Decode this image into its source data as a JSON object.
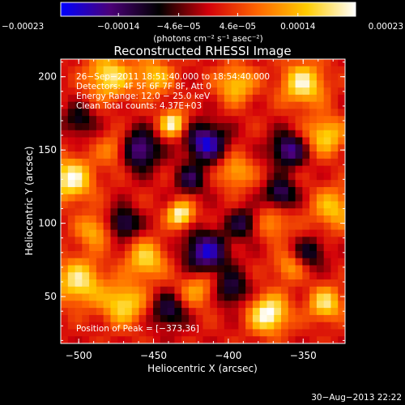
{
  "chart_data": {
    "type": "heatmap",
    "title": "Reconstructed RHESSI Image",
    "xlabel": "Heliocentric X (arcsec)",
    "ylabel": "Heliocentric Y (arcsec)",
    "xlim": [
      -512,
      -322
    ],
    "ylim": [
      18,
      212
    ],
    "xticks": [
      -500,
      -450,
      -400,
      -350
    ],
    "yticks": [
      50,
      100,
      150,
      200
    ],
    "xtick_labels": [
      "−500",
      "−450",
      "−400",
      "−350"
    ],
    "ytick_labels": [
      "50",
      "100",
      "150",
      "200"
    ],
    "colorbar": {
      "min": -0.00023,
      "max": 0.00023,
      "ticks": [
        -0.00023,
        -0.00014,
        -4.6e-05,
        4.6e-05,
        0.00014,
        0.00023
      ],
      "tick_labels": [
        "−0.00023",
        "−0.00014",
        "−4.6e−05",
        "4.6e−05",
        "0.00014",
        "0.00023"
      ],
      "unit_label": "(photons cm⁻² s⁻¹ asec⁻²)",
      "colors": [
        "#0000ff",
        "#4b0078",
        "#000000",
        "#d2000a",
        "#ff6600",
        "#ffcc00",
        "#ffffff"
      ]
    },
    "annotations": [
      "26−Sep−2011 18:51:40.000 to 18:54:40.000",
      "Detectors: 4F 5F 6F 7F 8F, Att 0",
      "Energy Range: 12.0 − 25.0 keV",
      "Clean    Total counts: 4.37E+03"
    ],
    "peak_label": "Position of Peak = [−373,36]",
    "peak": {
      "x": -373,
      "y": 36
    },
    "grid_size": [
      40,
      40
    ],
    "blobs": [
      {
        "x": -373,
        "y": 38,
        "a": 1.0,
        "s": 9
      },
      {
        "x": -432,
        "y": 106,
        "a": 0.95,
        "s": 6
      },
      {
        "x": -437,
        "y": 168,
        "a": 0.9,
        "s": 6
      },
      {
        "x": -505,
        "y": 130,
        "a": 0.9,
        "s": 10
      },
      {
        "x": -500,
        "y": 60,
        "a": 0.8,
        "s": 11
      },
      {
        "x": -470,
        "y": 45,
        "a": 0.75,
        "s": 10
      },
      {
        "x": -455,
        "y": 75,
        "a": 0.7,
        "s": 9
      },
      {
        "x": -420,
        "y": 55,
        "a": 0.5,
        "s": 9
      },
      {
        "x": -480,
        "y": 200,
        "a": 0.8,
        "s": 10
      },
      {
        "x": -450,
        "y": 200,
        "a": 0.6,
        "s": 9
      },
      {
        "x": -395,
        "y": 195,
        "a": 0.65,
        "s": 9
      },
      {
        "x": -350,
        "y": 195,
        "a": 0.85,
        "s": 10
      },
      {
        "x": -335,
        "y": 160,
        "a": 0.7,
        "s": 9
      },
      {
        "x": -330,
        "y": 110,
        "a": 0.6,
        "s": 10
      },
      {
        "x": -335,
        "y": 45,
        "a": 0.75,
        "s": 8
      },
      {
        "x": -395,
        "y": 135,
        "a": 0.55,
        "s": 8
      },
      {
        "x": -370,
        "y": 100,
        "a": 0.45,
        "s": 8
      },
      {
        "x": -475,
        "y": 150,
        "a": 0.5,
        "s": 8
      },
      {
        "x": -490,
        "y": 95,
        "a": 0.55,
        "s": 8
      },
      {
        "x": -360,
        "y": 70,
        "a": 0.45,
        "s": 7
      },
      {
        "x": -460,
        "y": 150,
        "a": -0.9,
        "s": 9
      },
      {
        "x": -470,
        "y": 100,
        "a": -0.7,
        "s": 7
      },
      {
        "x": -415,
        "y": 155,
        "a": -0.95,
        "s": 9
      },
      {
        "x": -415,
        "y": 80,
        "a": -0.9,
        "s": 10
      },
      {
        "x": -398,
        "y": 55,
        "a": -0.6,
        "s": 8
      },
      {
        "x": -360,
        "y": 150,
        "a": -0.8,
        "s": 8
      },
      {
        "x": -365,
        "y": 120,
        "a": -0.7,
        "s": 7
      },
      {
        "x": -440,
        "y": 40,
        "a": -0.6,
        "s": 8
      },
      {
        "x": -500,
        "y": 170,
        "a": -0.5,
        "s": 7
      },
      {
        "x": -345,
        "y": 80,
        "a": -0.5,
        "s": 7
      },
      {
        "x": -425,
        "y": 130,
        "a": -0.55,
        "s": 7
      },
      {
        "x": -390,
        "y": 100,
        "a": -0.55,
        "s": 7
      }
    ]
  },
  "footer": {
    "timestamp": "30−Aug−2013 22:22"
  }
}
